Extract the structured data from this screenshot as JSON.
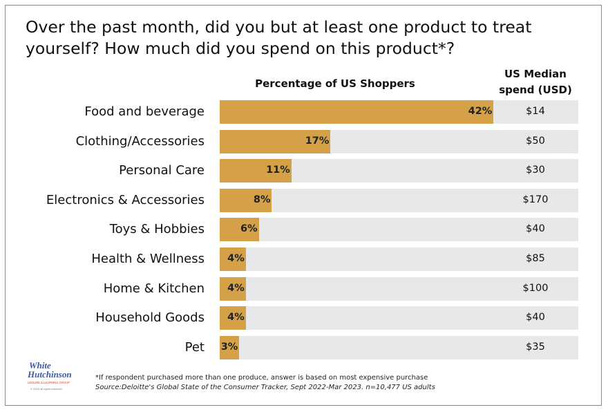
{
  "title": "Over the past month, did you but at least one product to treat yourself?  How much did you spend on this product*?",
  "headers": {
    "pct": "Percentage of US Shoppers",
    "spend_line1": "US Median",
    "spend_line2": "spend (USD)"
  },
  "chart_data": {
    "type": "bar",
    "orientation": "horizontal",
    "categories": [
      "Food and beverage",
      "Clothing/Accessories",
      "Personal Care",
      "Electronics & Accessories",
      "Toys & Hobbies",
      "Health & Wellness",
      "Home & Kitchen",
      "Household Goods",
      "Pet"
    ],
    "values": [
      42,
      17,
      11,
      8,
      6,
      4,
      4,
      4,
      3
    ],
    "value_labels": [
      "42%",
      "17%",
      "11%",
      "8%",
      "6%",
      "4%",
      "4%",
      "4%",
      "3%"
    ],
    "median_spend": [
      "$14",
      "$50",
      "$30",
      "$170",
      "$40",
      "$85",
      "$100",
      "$40",
      "$35"
    ],
    "xlim": [
      0,
      55
    ],
    "colors": {
      "bar": "#d4a148",
      "track": "#e8e8e8"
    }
  },
  "logo": {
    "line1": "White",
    "line2": "Hutchinson",
    "tagline": "LEISURE & LEARNING GROUP",
    "copyright": "© 2023 all rights reserved"
  },
  "footnotes": {
    "note": "*If respondent purchased more than one produce, answer is based on most expensive purchase",
    "source": "Source:Deloitte's Global State of the Consumer Tracker, Sept 2022-Mar 2023. n=10,477 US adults"
  }
}
